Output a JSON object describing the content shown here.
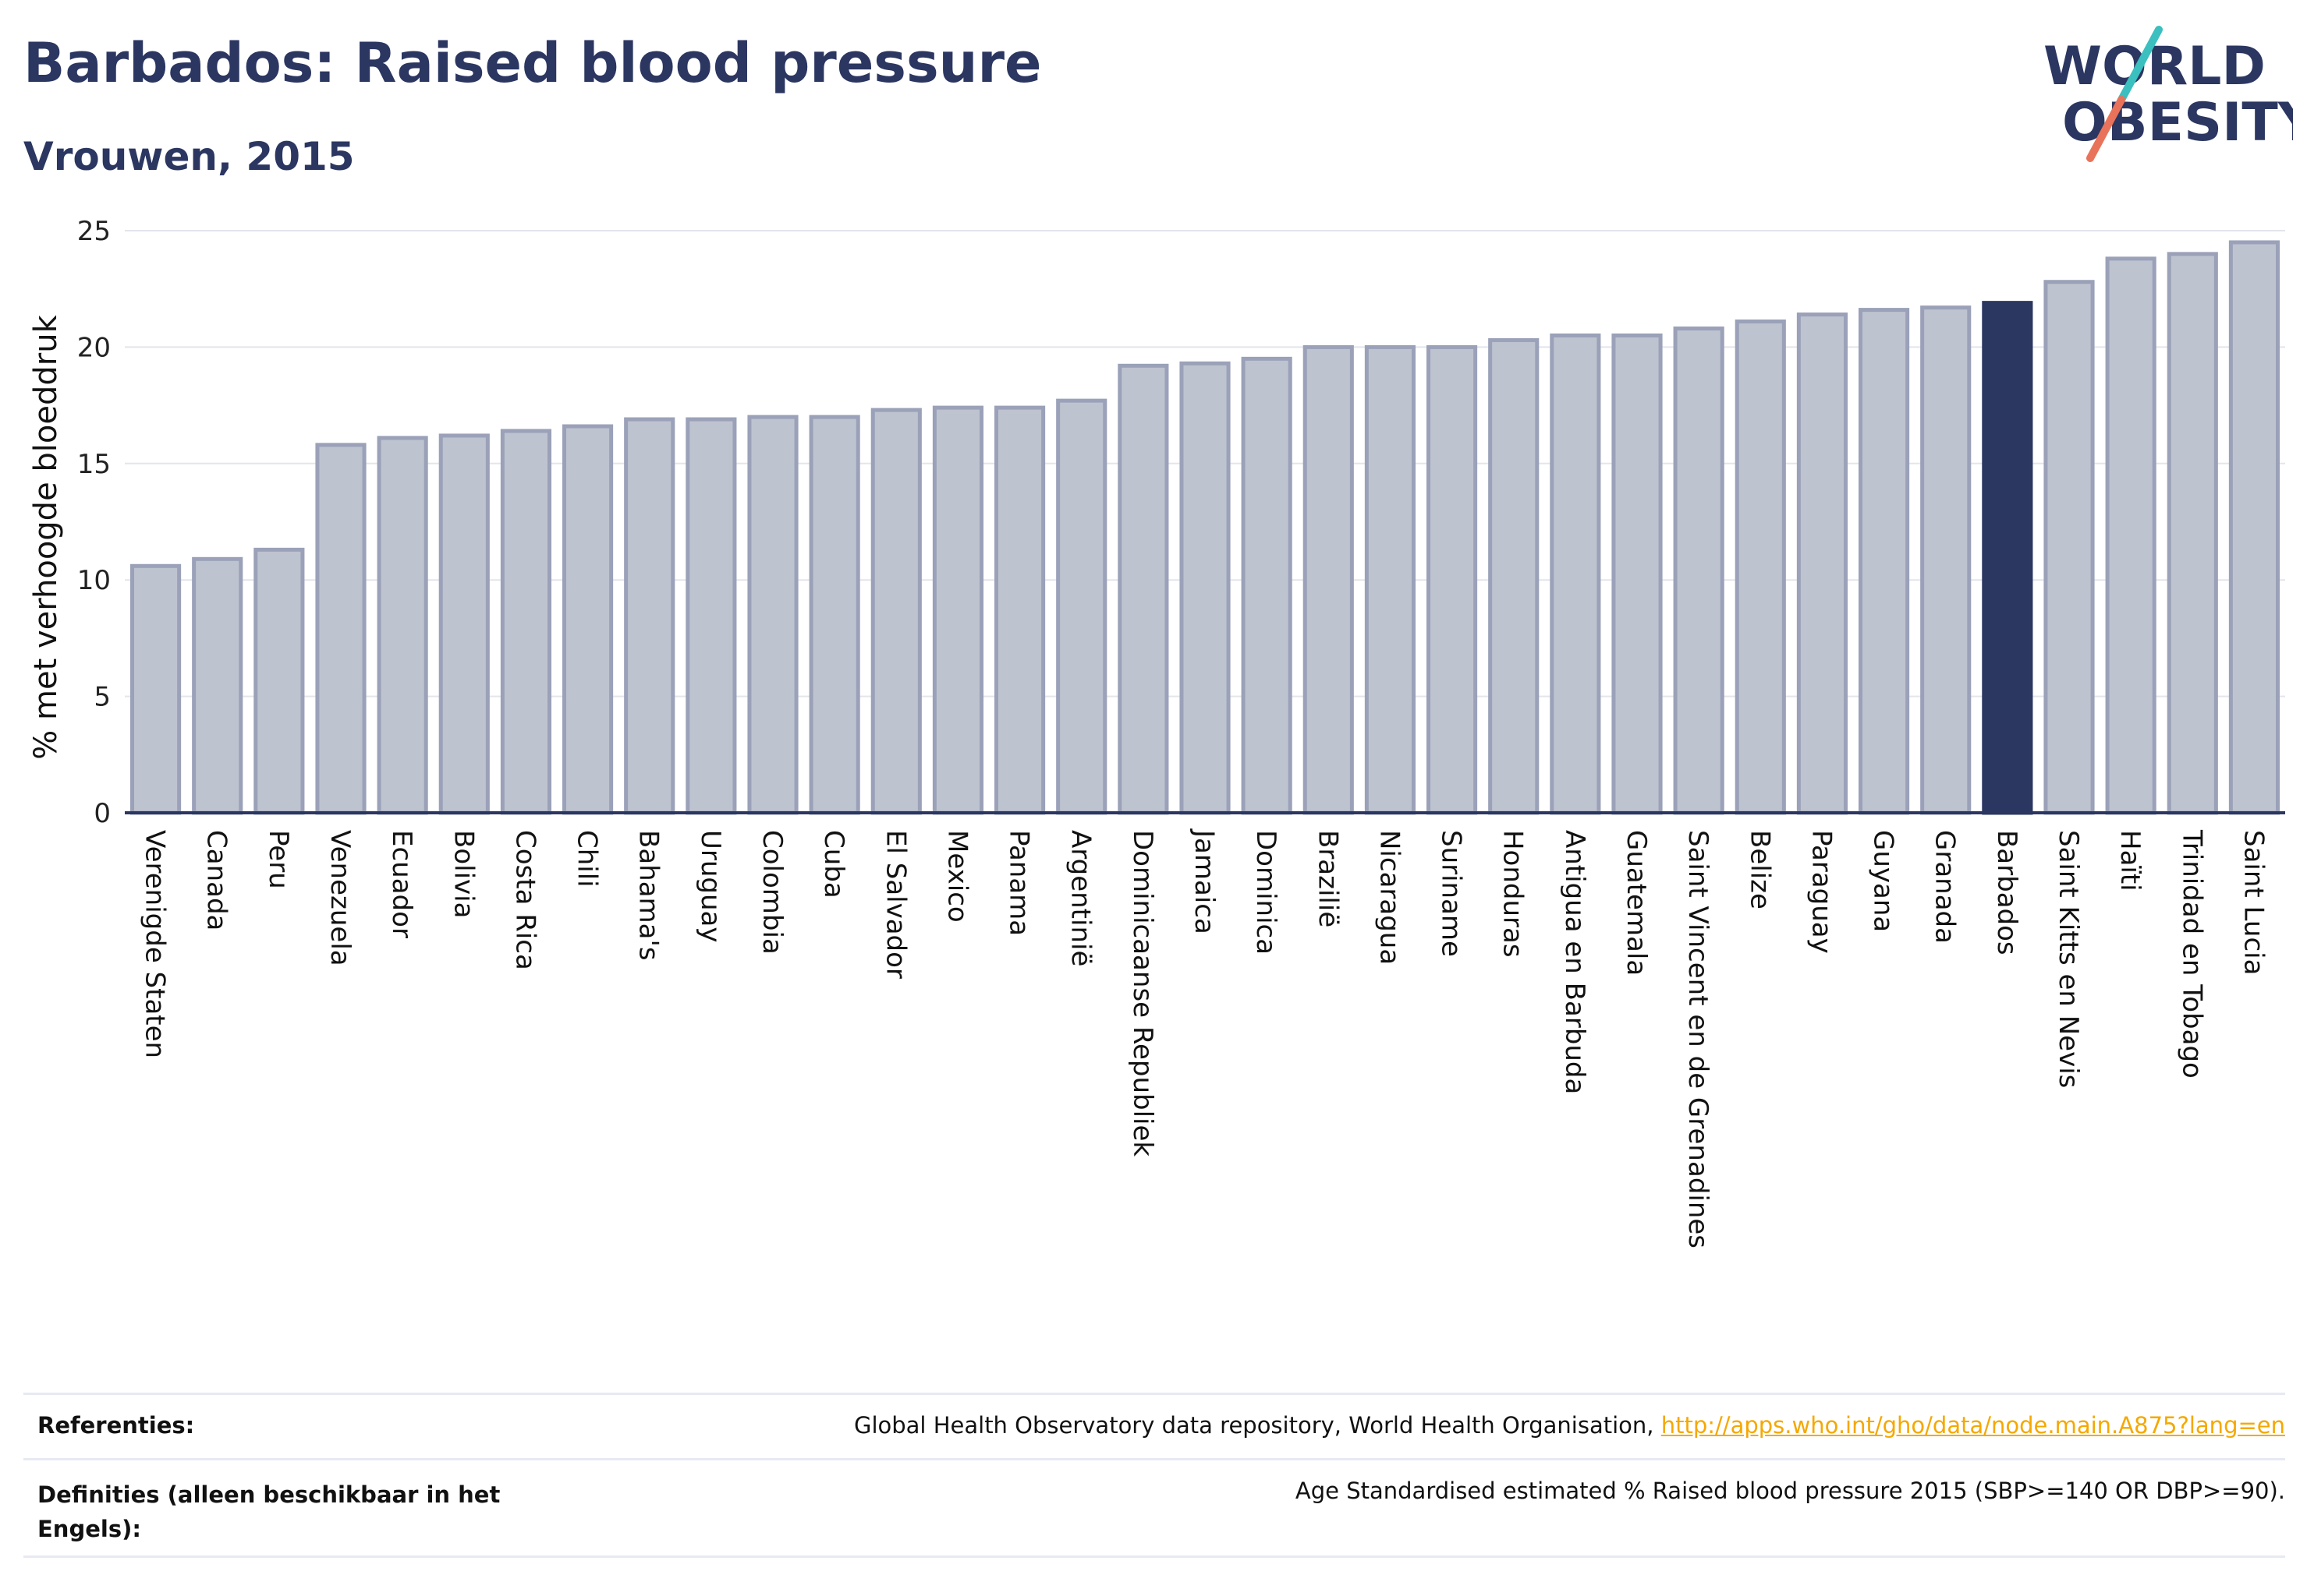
{
  "header": {
    "title": "Barbados: Raised blood pressure",
    "subtitle": "Vrouwen, 2015"
  },
  "logo": {
    "line1": "WORLD",
    "line2": "OBESITY"
  },
  "chart_data": {
    "type": "bar",
    "ylabel": "% met verhoogde bloeddruk",
    "ylim": [
      0,
      25
    ],
    "yticks": [
      0,
      5,
      10,
      15,
      20,
      25
    ],
    "grid": true,
    "highlight": "Barbados",
    "colors": {
      "bar": "#bec3d0",
      "bar_edge": "#9aa1b8",
      "highlight": "#2b3661",
      "axis": "#2b3661",
      "grid": "#e3e5ec"
    },
    "categories": [
      "Verenigde Staten",
      "Canada",
      "Peru",
      "Venezuela",
      "Ecuador",
      "Bolivia",
      "Costa Rica",
      "Chili",
      "Bahama's",
      "Uruguay",
      "Colombia",
      "Cuba",
      "El Salvador",
      "Mexico",
      "Panama",
      "Argentinië",
      "Dominicaanse Republiek",
      "Jamaica",
      "Dominica",
      "Brazilië",
      "Nicaragua",
      "Suriname",
      "Honduras",
      "Antigua en Barbuda",
      "Guatemala",
      "Saint Vincent en de Grenadines",
      "Belize",
      "Paraguay",
      "Guyana",
      "Granada",
      "Barbados",
      "Saint Kitts en Nevis",
      "Haïti",
      "Trinidad en Tobago",
      "Saint Lucia"
    ],
    "values": [
      10.6,
      10.9,
      11.3,
      15.8,
      16.1,
      16.2,
      16.4,
      16.6,
      16.9,
      16.9,
      17.0,
      17.0,
      17.3,
      17.4,
      17.4,
      17.7,
      19.2,
      19.3,
      19.5,
      20.0,
      20.0,
      20.0,
      20.3,
      20.5,
      20.5,
      20.8,
      21.1,
      21.4,
      21.6,
      21.7,
      21.9,
      22.8,
      23.8,
      24.0,
      24.5
    ]
  },
  "footer": {
    "references_label": "Referenties:",
    "references_text": "Global Health Observatory data repository, World Health Organisation, ",
    "references_link": "http://apps.who.int/gho/data/node.main.A875?lang=en",
    "definitions_label": "Definities (alleen beschikbaar in het Engels):",
    "definitions_text": "Age Standardised estimated % Raised blood pressure 2015 (SBP>=140 OR DBP>=90)."
  }
}
